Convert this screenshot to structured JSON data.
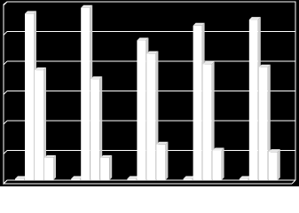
{
  "chart_data": {
    "type": "bar",
    "categories": [
      null,
      null,
      null,
      null,
      null
    ],
    "series": [
      {
        "color": "#ffffff",
        "values": [
          0.05,
          0.05,
          0.05,
          0.05,
          0.05
        ]
      },
      {
        "color": "#ffffff",
        "values": [
          5.6,
          5.8,
          4.7,
          5.2,
          5.4
        ]
      },
      {
        "color": "#ffffff",
        "values": [
          3.7,
          3.4,
          4.25,
          3.9,
          3.8
        ]
      },
      {
        "color": "#ffffff",
        "values": [
          0.75,
          0.75,
          1.2,
          1.0,
          0.95
        ]
      }
    ],
    "ylim": [
      0,
      6
    ],
    "yticks": [
      0,
      1,
      2,
      3,
      4,
      5,
      6
    ],
    "grid": true,
    "background": "#000000"
  }
}
